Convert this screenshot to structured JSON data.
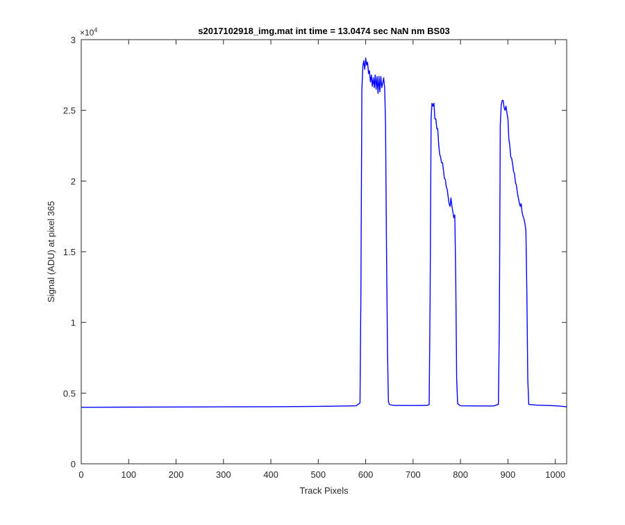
{
  "chart_data": {
    "type": "line",
    "title": "s2017102918_img.mat int time = 13.0474 sec  NaN nm BS03",
    "xlabel": "Track Pixels",
    "ylabel": "Signal (ADU) at pixel 365",
    "y_exponent_label": "×10",
    "y_exponent_power": "4",
    "xlim": [
      0,
      1024
    ],
    "ylim": [
      0,
      30000
    ],
    "x_ticks": [
      0,
      100,
      200,
      300,
      400,
      500,
      600,
      700,
      800,
      900,
      1000
    ],
    "x_tick_labels": [
      "0",
      "100",
      "200",
      "300",
      "400",
      "500",
      "600",
      "700",
      "800",
      "900",
      "1000"
    ],
    "y_ticks": [
      0,
      5000,
      10000,
      15000,
      20000,
      25000,
      30000
    ],
    "y_tick_labels": [
      "0",
      "0.5",
      "1",
      "1.5",
      "2",
      "2.5",
      "3"
    ],
    "grid": false,
    "line_color": "#0000ff",
    "series": [
      {
        "x": [
          0,
          100,
          200,
          300,
          400,
          500,
          580,
          588,
          590,
          592,
          594,
          596,
          598,
          600,
          602,
          604,
          606,
          608,
          610,
          612,
          614,
          616,
          618,
          620,
          622,
          624,
          626,
          628,
          630,
          632,
          634,
          636,
          638,
          640,
          642,
          644,
          646,
          648,
          650,
          652,
          654,
          656,
          660,
          700,
          730,
          734,
          736,
          738,
          740,
          742,
          744,
          746,
          748,
          750,
          752,
          754,
          756,
          758,
          760,
          762,
          764,
          766,
          768,
          770,
          772,
          774,
          776,
          778,
          780,
          782,
          784,
          786,
          788,
          790,
          792,
          794,
          796,
          798,
          800,
          840,
          870,
          880,
          882,
          884,
          886,
          888,
          890,
          892,
          894,
          896,
          898,
          900,
          902,
          904,
          906,
          908,
          910,
          912,
          914,
          916,
          918,
          920,
          922,
          924,
          926,
          928,
          930,
          932,
          934,
          936,
          938,
          940,
          942,
          944,
          960,
          1000,
          1024
        ],
        "y": [
          4000,
          4010,
          4020,
          4030,
          4040,
          4060,
          4100,
          4300,
          12000,
          26500,
          28100,
          28500,
          27900,
          28700,
          28200,
          28400,
          27600,
          27800,
          27000,
          27500,
          26700,
          27300,
          26600,
          27500,
          26500,
          27400,
          26200,
          27400,
          26300,
          27400,
          26600,
          26900,
          27300,
          26600,
          24000,
          15000,
          8000,
          4400,
          4200,
          4180,
          4160,
          4150,
          4130,
          4120,
          4130,
          4200,
          12000,
          24500,
          25500,
          25300,
          25500,
          24400,
          24400,
          23700,
          23700,
          22600,
          21900,
          21700,
          21300,
          21300,
          20800,
          20200,
          20100,
          19600,
          19400,
          18900,
          18400,
          18200,
          18800,
          18200,
          17800,
          17400,
          17600,
          13000,
          6000,
          4250,
          4200,
          4150,
          4100,
          4090,
          4090,
          4200,
          10000,
          24000,
          25400,
          25700,
          25700,
          25200,
          25000,
          25300,
          24800,
          24400,
          23000,
          22500,
          21700,
          21600,
          21200,
          20700,
          20500,
          19900,
          19700,
          19200,
          18800,
          18500,
          18200,
          18400,
          17800,
          17500,
          17300,
          17000,
          16500,
          12000,
          6000,
          4200,
          4150,
          4100,
          4040
        ]
      }
    ]
  }
}
